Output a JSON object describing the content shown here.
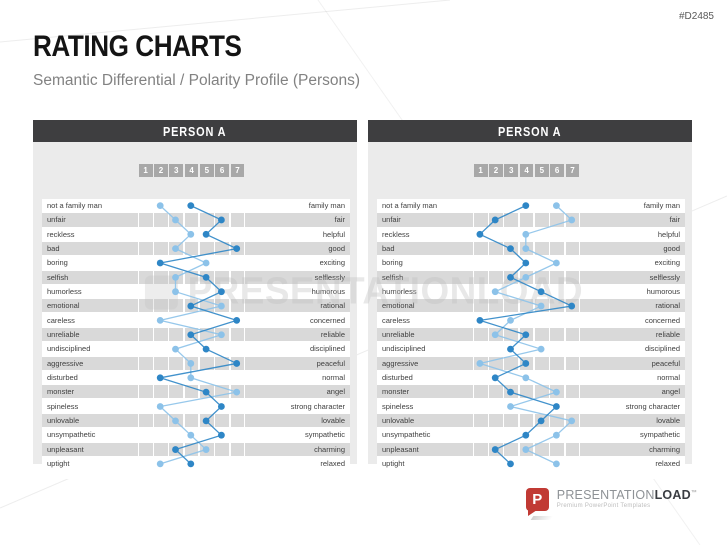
{
  "page": {
    "code": "#D2485",
    "title": "RATING CHARTS",
    "subtitle": "Semantic Differential / Polarity Profile (Persons)",
    "watermark": "PRESENTATIONLOAD"
  },
  "colors": {
    "dark_series": "#2E86C6",
    "light_series": "#8CC2E9",
    "header_bar": "#3E3E40",
    "row_gray": "#D9D9D9",
    "panel_bg": "#EBEBEB",
    "tick_bg": "#A8A8A8",
    "brand_red": "#C13A34"
  },
  "chart_data": [
    {
      "type": "line",
      "title": "PERSON A",
      "xlim": [
        1,
        7
      ],
      "ticks": [
        "1",
        "2",
        "3",
        "4",
        "5",
        "6",
        "7"
      ],
      "grid": false,
      "legend": "none",
      "categories_left": [
        "not a family man",
        "unfair",
        "reckless",
        "bad",
        "boring",
        "selfish",
        "humorless",
        "emotional",
        "careless",
        "unreliable",
        "undisciplined",
        "aggressive",
        "disturbed",
        "monster",
        "spineless",
        "unlovable",
        "unsympathetic",
        "unpleasant",
        "uptight"
      ],
      "categories_right": [
        "family man",
        "fair",
        "helpful",
        "good",
        "exciting",
        "selflessly",
        "humorous",
        "rational",
        "concerned",
        "reliable",
        "disciplined",
        "peaceful",
        "normal",
        "angel",
        "strong character",
        "lovable",
        "sympathetic",
        "charming",
        "relaxed"
      ],
      "series": [
        {
          "name": "rating-dark-blue",
          "color": "#2E86C6",
          "values": [
            4,
            6,
            5,
            7,
            2,
            5,
            6,
            4,
            7,
            4,
            5,
            7,
            2,
            5,
            6,
            5,
            6,
            3,
            4
          ]
        },
        {
          "name": "rating-light-blue",
          "color": "#8CC2E9",
          "values": [
            2,
            3,
            4,
            3,
            5,
            3,
            3,
            6,
            2,
            6,
            3,
            4,
            4,
            7,
            2,
            3,
            4,
            5,
            2
          ]
        }
      ]
    },
    {
      "type": "line",
      "title": "PERSON A",
      "xlim": [
        1,
        7
      ],
      "ticks": [
        "1",
        "2",
        "3",
        "4",
        "5",
        "6",
        "7"
      ],
      "grid": false,
      "legend": "none",
      "categories_left": [
        "not a family man",
        "unfair",
        "reckless",
        "bad",
        "boring",
        "selfish",
        "humorless",
        "emotional",
        "careless",
        "unreliable",
        "undisciplined",
        "aggressive",
        "disturbed",
        "monster",
        "spineless",
        "unlovable",
        "unsympathetic",
        "unpleasant",
        "uptight"
      ],
      "categories_right": [
        "family man",
        "fair",
        "helpful",
        "good",
        "exciting",
        "selflessly",
        "humorous",
        "rational",
        "concerned",
        "reliable",
        "disciplined",
        "peaceful",
        "normal",
        "angel",
        "strong character",
        "lovable",
        "sympathetic",
        "charming",
        "relaxed"
      ],
      "series": [
        {
          "name": "rating-dark-blue",
          "color": "#2E86C6",
          "values": [
            4,
            2,
            1,
            3,
            4,
            3,
            5,
            7,
            1,
            4,
            3,
            4,
            2,
            3,
            6,
            5,
            4,
            2,
            3
          ]
        },
        {
          "name": "rating-light-blue",
          "color": "#8CC2E9",
          "values": [
            6,
            7,
            4,
            4,
            6,
            4,
            2,
            5,
            3,
            2,
            5,
            1,
            4,
            6,
            3,
            7,
            6,
            4,
            6
          ]
        }
      ]
    }
  ],
  "footer": {
    "icon_letter": "P",
    "brand_primary": "PRESENTATION",
    "brand_secondary": "LOAD",
    "tm": "™",
    "tagline": "Premium PowerPoint Templates"
  }
}
